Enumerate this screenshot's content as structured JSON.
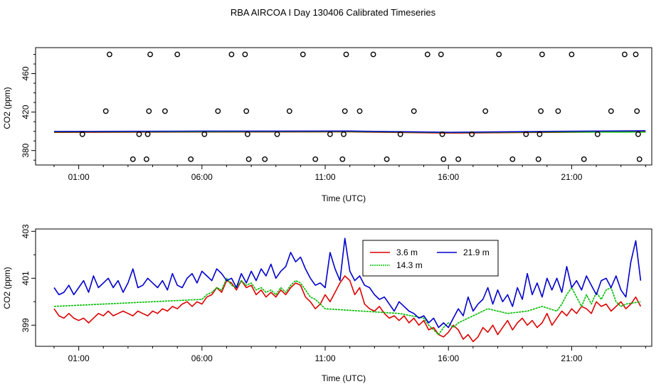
{
  "title": "RBA AIRCOA I  Day 130406  Calibrated Timeseries",
  "colors": {
    "red": "#dd0000",
    "green": "#00bb00",
    "blue": "#0000cc",
    "axis": "#000000"
  },
  "chart_data": [
    {
      "type": "scatter",
      "title": "",
      "xlabel": "Time (UTC)",
      "ylabel": "CO2 (ppm)",
      "xlim": [
        -0.75,
        24.25
      ],
      "ylim": [
        365,
        487
      ],
      "xticks": [
        1,
        6,
        11,
        16,
        21
      ],
      "xtick_labels": [
        "01:00",
        "06:00",
        "11:00",
        "16:00",
        "21:00"
      ],
      "yticks": [
        380,
        420,
        460
      ],
      "ytick_labels": [
        "380",
        "420",
        "460"
      ],
      "circles": [
        {
          "x": 1.15,
          "y": 397
        },
        {
          "x": 2.1,
          "y": 421
        },
        {
          "x": 2.25,
          "y": 480
        },
        {
          "x": 3.2,
          "y": 371
        },
        {
          "x": 3.45,
          "y": 397
        },
        {
          "x": 3.75,
          "y": 371
        },
        {
          "x": 3.8,
          "y": 397
        },
        {
          "x": 3.85,
          "y": 421
        },
        {
          "x": 3.9,
          "y": 480
        },
        {
          "x": 4.5,
          "y": 421
        },
        {
          "x": 5.0,
          "y": 480
        },
        {
          "x": 5.55,
          "y": 371
        },
        {
          "x": 6.1,
          "y": 397
        },
        {
          "x": 6.65,
          "y": 421
        },
        {
          "x": 7.2,
          "y": 480
        },
        {
          "x": 7.75,
          "y": 480
        },
        {
          "x": 7.8,
          "y": 421
        },
        {
          "x": 7.85,
          "y": 397
        },
        {
          "x": 7.9,
          "y": 371
        },
        {
          "x": 8.55,
          "y": 371
        },
        {
          "x": 9.05,
          "y": 397
        },
        {
          "x": 9.55,
          "y": 421
        },
        {
          "x": 10.1,
          "y": 480
        },
        {
          "x": 10.6,
          "y": 371
        },
        {
          "x": 11.2,
          "y": 397
        },
        {
          "x": 11.7,
          "y": 371
        },
        {
          "x": 11.75,
          "y": 397
        },
        {
          "x": 11.8,
          "y": 421
        },
        {
          "x": 11.85,
          "y": 480
        },
        {
          "x": 12.4,
          "y": 421
        },
        {
          "x": 12.95,
          "y": 480
        },
        {
          "x": 13.5,
          "y": 371
        },
        {
          "x": 14.05,
          "y": 397
        },
        {
          "x": 14.6,
          "y": 421
        },
        {
          "x": 15.15,
          "y": 480
        },
        {
          "x": 15.7,
          "y": 480
        },
        {
          "x": 15.75,
          "y": 397
        },
        {
          "x": 15.8,
          "y": 371
        },
        {
          "x": 16.4,
          "y": 371
        },
        {
          "x": 16.95,
          "y": 397
        },
        {
          "x": 17.5,
          "y": 421
        },
        {
          "x": 18.05,
          "y": 480
        },
        {
          "x": 18.6,
          "y": 371
        },
        {
          "x": 19.15,
          "y": 397
        },
        {
          "x": 19.65,
          "y": 371
        },
        {
          "x": 19.7,
          "y": 397
        },
        {
          "x": 19.75,
          "y": 421
        },
        {
          "x": 19.8,
          "y": 480
        },
        {
          "x": 20.45,
          "y": 421
        },
        {
          "x": 21.0,
          "y": 480
        },
        {
          "x": 21.5,
          "y": 371
        },
        {
          "x": 22.05,
          "y": 397
        },
        {
          "x": 22.6,
          "y": 421
        },
        {
          "x": 23.15,
          "y": 480
        },
        {
          "x": 23.6,
          "y": 480
        },
        {
          "x": 23.65,
          "y": 421
        },
        {
          "x": 23.7,
          "y": 397
        },
        {
          "x": 23.75,
          "y": 371
        }
      ],
      "series": [
        {
          "name": "3.6 m",
          "color": "#dd0000",
          "x": [
            0,
            6,
            12,
            16,
            20,
            24
          ],
          "y": [
            398.8,
            399.2,
            399.4,
            398.2,
            398.9,
            399.5
          ]
        },
        {
          "name": "14.3 m",
          "color": "#00bb00",
          "x": [
            0,
            6,
            12,
            16,
            20,
            24
          ],
          "y": [
            399.4,
            399.6,
            399.8,
            398.7,
            399.3,
            399.2
          ]
        },
        {
          "name": "21.9 m",
          "color": "#0000cc",
          "x": [
            0,
            6,
            12,
            16,
            20,
            24
          ],
          "y": [
            399.9,
            400.2,
            400.3,
            399.0,
            399.9,
            400.6
          ]
        }
      ]
    },
    {
      "type": "line",
      "title": "",
      "xlabel": "Time (UTC)",
      "ylabel": "CO2 (ppm)",
      "xlim": [
        -0.75,
        24.25
      ],
      "ylim": [
        398.1,
        403.1
      ],
      "xticks": [
        1,
        6,
        11,
        16,
        21
      ],
      "xtick_labels": [
        "01:00",
        "06:00",
        "11:00",
        "16:00",
        "21:00"
      ],
      "yticks": [
        399,
        401,
        403
      ],
      "ytick_labels": [
        "399",
        "401",
        "403"
      ],
      "legend": {
        "placement": "top-center"
      },
      "series": [
        {
          "name": "3.6 m",
          "color": "#dd0000",
          "x": [
            0.0,
            0.2,
            0.4,
            0.6,
            0.8,
            1.0,
            1.2,
            1.4,
            1.6,
            1.8,
            2.0,
            2.2,
            2.4,
            2.6,
            2.8,
            3.0,
            3.2,
            3.4,
            3.6,
            3.8,
            4.0,
            4.2,
            4.4,
            4.6,
            4.8,
            5.0,
            5.2,
            5.4,
            5.6,
            5.8,
            6.0,
            6.2,
            6.4,
            6.6,
            6.8,
            7.0,
            7.2,
            7.4,
            7.6,
            7.8,
            8.0,
            8.2,
            8.4,
            8.6,
            8.8,
            9.0,
            9.2,
            9.4,
            9.6,
            9.8,
            10.0,
            10.2,
            10.4,
            10.6,
            10.8,
            11.0,
            11.2,
            11.4,
            11.6,
            11.8,
            12.0,
            12.2,
            12.4,
            12.6,
            12.8,
            13.0,
            13.2,
            13.4,
            13.6,
            13.8,
            14.0,
            14.2,
            14.4,
            14.6,
            14.8,
            15.0,
            15.2,
            15.4,
            15.6,
            15.8,
            16.0,
            16.2,
            16.4,
            16.6,
            16.8,
            17.0,
            17.2,
            17.4,
            17.6,
            17.8,
            18.0,
            18.2,
            18.4,
            18.6,
            18.8,
            19.0,
            19.2,
            19.4,
            19.6,
            19.8,
            20.0,
            20.2,
            20.4,
            20.6,
            20.8,
            21.0,
            21.2,
            21.4,
            21.6,
            21.8,
            22.0,
            22.2,
            22.4,
            22.6,
            22.8,
            23.0,
            23.2,
            23.4,
            23.6,
            23.8
          ],
          "y": [
            399.7,
            399.4,
            399.3,
            399.5,
            399.3,
            399.2,
            399.3,
            399.1,
            399.3,
            399.5,
            399.4,
            399.6,
            399.4,
            399.5,
            399.6,
            399.5,
            399.4,
            399.6,
            399.5,
            399.4,
            399.6,
            399.5,
            399.7,
            399.6,
            399.8,
            399.7,
            399.9,
            400.0,
            399.8,
            400.0,
            399.9,
            400.2,
            400.3,
            400.6,
            400.4,
            400.9,
            400.8,
            400.5,
            400.9,
            400.6,
            400.7,
            400.3,
            400.5,
            400.2,
            400.4,
            400.2,
            400.5,
            400.3,
            400.6,
            400.8,
            400.7,
            400.2,
            400.0,
            399.7,
            399.9,
            400.3,
            400.0,
            400.4,
            400.8,
            401.1,
            400.9,
            400.3,
            400.6,
            399.9,
            399.7,
            399.6,
            399.8,
            399.5,
            399.3,
            399.4,
            399.2,
            399.4,
            399.1,
            399.3,
            399.0,
            399.2,
            398.8,
            398.9,
            398.6,
            398.5,
            398.7,
            399.0,
            398.8,
            398.4,
            398.6,
            398.3,
            398.5,
            398.9,
            398.7,
            399.0,
            398.6,
            398.9,
            399.2,
            398.8,
            399.1,
            399.3,
            399.0,
            399.2,
            398.9,
            399.1,
            399.5,
            399.0,
            399.3,
            399.6,
            399.4,
            399.7,
            399.5,
            399.8,
            399.7,
            399.5,
            400.0,
            399.8,
            399.9,
            399.6,
            399.8,
            400.0,
            399.7,
            399.9,
            400.2,
            399.8
          ]
        },
        {
          "name": "14.3 m",
          "color": "#00bb00",
          "x": [
            0.0,
            2.0,
            4.0,
            6.0,
            6.2,
            6.4,
            6.6,
            6.8,
            7.0,
            7.2,
            7.4,
            7.6,
            7.8,
            8.0,
            8.2,
            8.4,
            8.6,
            8.8,
            9.0,
            9.2,
            9.4,
            9.6,
            9.8,
            10.0,
            10.2,
            10.4,
            10.6,
            10.8,
            11.0,
            14.0,
            15.0,
            15.2,
            15.4,
            15.6,
            15.8,
            16.0,
            16.2,
            16.4,
            17.0,
            17.6,
            18.4,
            19.2,
            19.8,
            20.4,
            20.6,
            20.8,
            21.0,
            21.2,
            21.4,
            21.6,
            21.8,
            22.0,
            22.2,
            22.4,
            22.6,
            22.8,
            23.0,
            23.2,
            23.8
          ],
          "y": [
            399.8,
            399.9,
            400.0,
            400.1,
            400.3,
            400.4,
            400.6,
            400.5,
            401.0,
            400.7,
            400.6,
            400.9,
            400.7,
            400.8,
            400.5,
            400.6,
            400.4,
            400.5,
            400.3,
            400.6,
            400.4,
            400.7,
            400.9,
            400.8,
            400.5,
            400.2,
            400.1,
            399.9,
            399.7,
            399.5,
            399.3,
            399.0,
            398.8,
            398.6,
            398.9,
            399.1,
            398.9,
            399.1,
            399.4,
            399.7,
            399.5,
            399.6,
            399.8,
            399.6,
            399.9,
            400.3,
            400.6,
            400.2,
            399.8,
            400.3,
            399.9,
            400.4,
            400.1,
            400.5,
            400.6,
            400.0,
            399.8,
            399.9,
            400.0
          ]
        },
        {
          "name": "21.9 m",
          "color": "#0000cc",
          "x": [
            0.0,
            0.2,
            0.4,
            0.6,
            0.8,
            1.0,
            1.2,
            1.4,
            1.6,
            1.8,
            2.0,
            2.2,
            2.4,
            2.6,
            2.8,
            3.0,
            3.2,
            3.4,
            3.6,
            3.8,
            4.0,
            4.2,
            4.4,
            4.6,
            4.8,
            5.0,
            5.2,
            5.4,
            5.6,
            5.8,
            6.0,
            6.2,
            6.4,
            6.6,
            6.8,
            7.0,
            7.2,
            7.4,
            7.6,
            7.8,
            8.0,
            8.2,
            8.4,
            8.6,
            8.8,
            9.0,
            9.2,
            9.4,
            9.6,
            9.8,
            10.0,
            10.2,
            10.4,
            10.6,
            10.8,
            11.0,
            11.2,
            11.4,
            11.6,
            11.8,
            12.0,
            12.2,
            12.4,
            12.6,
            12.8,
            13.0,
            13.2,
            13.4,
            13.6,
            13.8,
            14.0,
            14.2,
            14.4,
            14.6,
            14.8,
            15.0,
            15.2,
            15.4,
            15.6,
            15.8,
            16.0,
            16.2,
            16.4,
            16.6,
            16.8,
            17.0,
            17.2,
            17.4,
            17.6,
            17.8,
            18.0,
            18.2,
            18.4,
            18.6,
            18.8,
            19.0,
            19.2,
            19.4,
            19.6,
            19.8,
            20.0,
            20.2,
            20.4,
            20.6,
            20.8,
            21.0,
            21.2,
            21.4,
            21.6,
            21.8,
            22.0,
            22.2,
            22.4,
            22.6,
            22.8,
            23.0,
            23.2,
            23.4,
            23.6,
            23.8
          ],
          "y": [
            400.6,
            400.3,
            400.4,
            400.7,
            400.3,
            400.6,
            400.9,
            400.4,
            401.1,
            400.6,
            400.8,
            401.0,
            400.6,
            400.9,
            400.4,
            400.8,
            401.4,
            400.6,
            400.7,
            401.0,
            400.8,
            400.6,
            400.9,
            400.5,
            401.2,
            400.7,
            400.6,
            401.0,
            401.2,
            400.8,
            401.3,
            401.1,
            400.9,
            401.4,
            401.2,
            400.9,
            401.0,
            400.6,
            401.2,
            400.8,
            401.3,
            400.9,
            401.4,
            401.1,
            401.6,
            401.0,
            401.3,
            401.5,
            402.1,
            401.7,
            401.9,
            401.4,
            401.0,
            400.7,
            400.8,
            400.6,
            402.1,
            401.4,
            400.9,
            402.7,
            401.3,
            400.9,
            401.1,
            400.7,
            400.6,
            400.3,
            400.1,
            400.2,
            399.9,
            399.6,
            400.0,
            399.8,
            399.6,
            399.5,
            399.3,
            399.4,
            399.1,
            399.3,
            398.9,
            399.1,
            398.9,
            399.3,
            399.7,
            399.4,
            400.2,
            399.6,
            399.9,
            400.1,
            400.6,
            399.9,
            400.5,
            400.0,
            400.3,
            399.8,
            400.6,
            400.1,
            401.2,
            400.3,
            400.8,
            400.2,
            401.0,
            400.5,
            401.0,
            400.4,
            401.5,
            400.6,
            400.9,
            400.5,
            401.1,
            400.7,
            400.3,
            400.9,
            401.0,
            400.6,
            401.1,
            400.5,
            400.2,
            401.7,
            402.6,
            400.9
          ]
        }
      ]
    }
  ]
}
